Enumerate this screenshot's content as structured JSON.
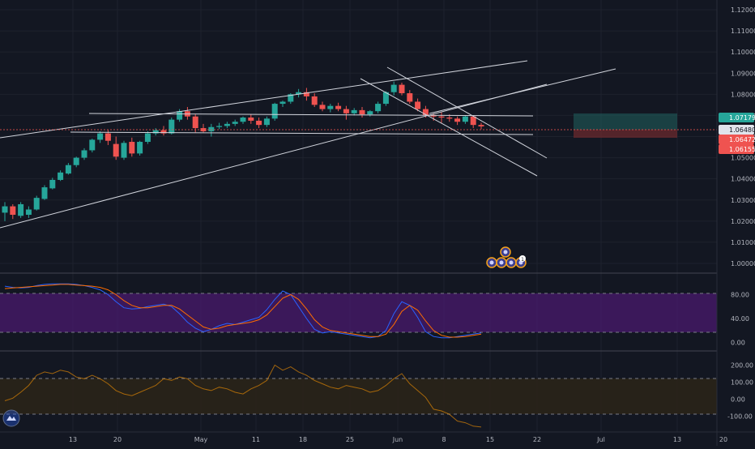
{
  "chart_data": [
    {
      "type": "candlestick",
      "panel": "price",
      "series_name": "",
      "y_axis_ticks": [
        "1.12000",
        "1.11000",
        "1.10000",
        "1.09000",
        "1.08000",
        "1.07000",
        "1.06000",
        "1.05000",
        "1.04000",
        "1.03000",
        "1.02000",
        "1.01000",
        "1.00000"
      ],
      "ylim": [
        1.0,
        1.125
      ],
      "price_labels": [
        {
          "text": "1.07179",
          "value": 1.07179,
          "color": "#26a69a"
        },
        {
          "text": "1.06480",
          "value": 1.0648,
          "color": "#e0e3eb"
        },
        {
          "text": "1.06472",
          "value": 1.06472,
          "color": "#ef5350"
        },
        {
          "text": "1.06155",
          "value": 1.06155,
          "color": "#ef5350"
        }
      ],
      "candles": [
        [
          1.024,
          1.029,
          1.02,
          1.027
        ],
        [
          1.027,
          1.028,
          1.021,
          1.023
        ],
        [
          1.0225,
          1.029,
          1.0215,
          1.028
        ],
        [
          1.023,
          1.027,
          1.0215,
          1.0255
        ],
        [
          1.0255,
          1.032,
          1.025,
          1.031
        ],
        [
          1.0305,
          1.037,
          1.03,
          1.036
        ],
        [
          1.0355,
          1.0405,
          1.035,
          1.0395
        ],
        [
          1.0395,
          1.044,
          1.039,
          1.043
        ],
        [
          1.0425,
          1.0475,
          1.042,
          1.0465
        ],
        [
          1.0465,
          1.0505,
          1.0455,
          1.05
        ],
        [
          1.05,
          1.0545,
          1.049,
          1.0535
        ],
        [
          1.0535,
          1.059,
          1.0525,
          1.0585
        ],
        [
          1.0585,
          1.0625,
          1.057,
          1.0615
        ],
        [
          1.0615,
          1.063,
          1.056,
          1.058
        ],
        [
          1.0565,
          1.06,
          1.049,
          1.0505
        ],
        [
          1.05,
          1.058,
          1.049,
          1.057
        ],
        [
          1.0575,
          1.0595,
          1.0505,
          1.052
        ],
        [
          1.052,
          1.058,
          1.051,
          1.0575
        ],
        [
          1.0575,
          1.0625,
          1.0565,
          1.0615
        ],
        [
          1.0615,
          1.064,
          1.0605,
          1.063
        ],
        [
          1.063,
          1.065,
          1.0605,
          1.0615
        ],
        [
          1.0615,
          1.069,
          1.061,
          1.068
        ],
        [
          1.068,
          1.073,
          1.067,
          1.072
        ],
        [
          1.072,
          1.074,
          1.068,
          1.0695
        ],
        [
          1.0695,
          1.0705,
          1.062,
          1.064
        ],
        [
          1.064,
          1.066,
          1.062,
          1.0625
        ],
        [
          1.0625,
          1.066,
          1.06,
          1.0645
        ],
        [
          1.0645,
          1.0665,
          1.0635,
          1.065
        ],
        [
          1.065,
          1.067,
          1.064,
          1.066
        ],
        [
          1.066,
          1.068,
          1.065,
          1.067
        ],
        [
          1.067,
          1.0695,
          1.066,
          1.069
        ],
        [
          1.069,
          1.0705,
          1.066,
          1.0675
        ],
        [
          1.0675,
          1.069,
          1.064,
          1.0655
        ],
        [
          1.0655,
          1.0695,
          1.0645,
          1.0685
        ],
        [
          1.0685,
          1.076,
          1.0675,
          1.0755
        ],
        [
          1.0755,
          1.077,
          1.074,
          1.0765
        ],
        [
          1.0765,
          1.0805,
          1.0755,
          1.08
        ],
        [
          1.08,
          1.0825,
          1.0785,
          1.081
        ],
        [
          1.081,
          1.083,
          1.077,
          1.079
        ],
        [
          1.079,
          1.0805,
          1.074,
          1.075
        ],
        [
          1.075,
          1.0765,
          1.072,
          1.073
        ],
        [
          1.073,
          1.0755,
          1.0715,
          1.0745
        ],
        [
          1.0745,
          1.076,
          1.072,
          1.073
        ],
        [
          1.073,
          1.0745,
          1.068,
          1.071
        ],
        [
          1.071,
          1.0735,
          1.07,
          1.0725
        ],
        [
          1.0725,
          1.074,
          1.069,
          1.0705
        ],
        [
          1.0705,
          1.0725,
          1.0695,
          1.072
        ],
        [
          1.072,
          1.0765,
          1.071,
          1.0755
        ],
        [
          1.0755,
          1.0815,
          1.0745,
          1.081
        ],
        [
          1.081,
          1.086,
          1.0795,
          1.0845
        ],
        [
          1.0845,
          1.0855,
          1.0795,
          1.0805
        ],
        [
          1.0805,
          1.082,
          1.0755,
          1.0765
        ],
        [
          1.0765,
          1.078,
          1.072,
          1.073
        ],
        [
          1.073,
          1.0745,
          1.069,
          1.07
        ],
        [
          1.07,
          1.071,
          1.0675,
          1.0695
        ],
        [
          1.0695,
          1.0715,
          1.0665,
          1.069
        ],
        [
          1.069,
          1.0705,
          1.067,
          1.0685
        ],
        [
          1.0685,
          1.0695,
          1.0655,
          1.067
        ],
        [
          1.067,
          1.07,
          1.066,
          1.0695
        ],
        [
          1.0695,
          1.07,
          1.064,
          1.0655
        ],
        [
          1.0655,
          1.0665,
          1.0635,
          1.0648
        ]
      ]
    },
    {
      "type": "line",
      "panel": "stochastic",
      "y_axis_ticks": [
        "80.00",
        "40.00",
        "0.00"
      ],
      "ylim": [
        -10,
        105
      ],
      "band": [
        20,
        80
      ],
      "series": [
        {
          "name": "",
          "color": "#2962ff",
          "values": [
            94,
            92,
            91,
            92,
            95,
            97,
            98,
            98,
            98,
            97,
            95,
            92,
            88,
            80,
            68,
            58,
            56,
            57,
            60,
            62,
            64,
            60,
            48,
            34,
            24,
            18,
            22,
            28,
            32,
            30,
            34,
            38,
            42,
            55,
            72,
            86,
            80,
            60,
            40,
            22,
            16,
            18,
            16,
            14,
            12,
            10,
            8,
            10,
            20,
            48,
            68,
            62,
            42,
            18,
            10,
            8,
            8,
            10,
            12,
            14,
            16
          ]
        },
        {
          "name": "",
          "color": "#ff6d00",
          "values": [
            90,
            91,
            92,
            93,
            94,
            95,
            96,
            97,
            97,
            96,
            95,
            94,
            92,
            88,
            80,
            70,
            62,
            58,
            58,
            60,
            62,
            62,
            56,
            46,
            36,
            26,
            22,
            24,
            28,
            30,
            32,
            34,
            38,
            46,
            60,
            74,
            80,
            72,
            56,
            38,
            26,
            20,
            18,
            16,
            14,
            12,
            10,
            10,
            14,
            30,
            52,
            62,
            54,
            36,
            20,
            12,
            9,
            9,
            10,
            12,
            14
          ]
        }
      ]
    },
    {
      "type": "line",
      "panel": "cci",
      "y_axis_ticks": [
        "200.00",
        "100.00",
        "0.00",
        "-100.00"
      ],
      "ylim": [
        -180,
        260
      ],
      "band": [
        -100,
        100
      ],
      "series": [
        {
          "name": "",
          "color": "#ff9800",
          "values": [
            -10,
            5,
            40,
            80,
            140,
            160,
            150,
            170,
            160,
            130,
            120,
            140,
            120,
            90,
            50,
            30,
            20,
            40,
            60,
            80,
            120,
            110,
            130,
            120,
            80,
            60,
            50,
            70,
            60,
            40,
            30,
            60,
            80,
            110,
            200,
            170,
            190,
            160,
            140,
            110,
            90,
            70,
            60,
            80,
            70,
            60,
            40,
            50,
            80,
            120,
            150,
            90,
            50,
            10,
            -60,
            -70,
            -90,
            -130,
            -140,
            -160,
            -165
          ]
        }
      ]
    }
  ],
  "x_axis_labels": [
    "13",
    "20",
    "May",
    "11",
    "18",
    "25",
    "Jun",
    "8",
    "15",
    "22",
    "Jul",
    "13",
    "20"
  ],
  "brand": {
    "logo_icon": "tradingview-logo-icon"
  },
  "event_markers": {
    "icons": [
      "event-marker-icon",
      "event-marker-icon",
      "event-marker-icon",
      "event-marker-icon",
      "event-marker-icon",
      "event-marker-icon"
    ],
    "count_badge": "1"
  },
  "colors": {
    "background": "#131722",
    "up": "#26a69a",
    "down": "#ef5350",
    "stoch_band": "#4a1a6e",
    "cci_band": "#2a2418",
    "grid": "#1e222d",
    "trend": "#d1d4dc"
  }
}
